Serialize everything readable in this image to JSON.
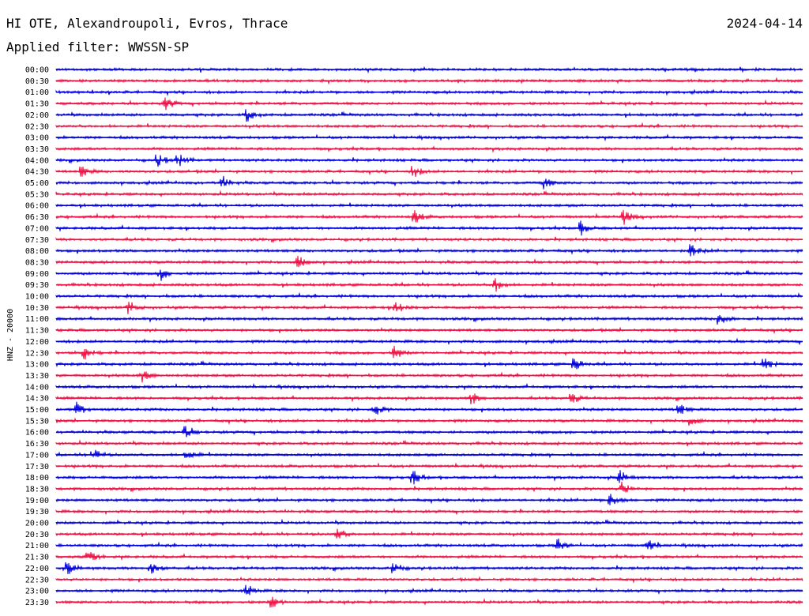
{
  "header": {
    "station": "HI OTE, Alexandroupoli, Evros, Thrace",
    "date": "2024-04-14",
    "filter": "Applied filter: WWSSN-SP"
  },
  "colors": {
    "blue": "#0000dd",
    "red": "#ee1144"
  },
  "chart_data": {
    "type": "line",
    "title": "HI OTE, Alexandroupoli, Evros, Thrace",
    "ylabel": "HNZ - 20000",
    "trace_colors": [
      "#0000dd",
      "#ee1144"
    ],
    "rows": [
      "00:00",
      "00:30",
      "01:00",
      "01:30",
      "02:00",
      "02:30",
      "03:00",
      "03:30",
      "04:00",
      "04:30",
      "05:00",
      "05:30",
      "06:00",
      "06:30",
      "07:00",
      "07:30",
      "08:00",
      "08:30",
      "09:00",
      "09:30",
      "10:00",
      "10:30",
      "11:00",
      "11:30",
      "12:00",
      "12:30",
      "13:00",
      "13:30",
      "14:00",
      "14:30",
      "15:00",
      "15:30",
      "16:00",
      "16:30",
      "17:00",
      "17:30",
      "18:00",
      "18:30",
      "19:00",
      "19:30",
      "20:00",
      "20:30",
      "21:00",
      "21:30",
      "22:00",
      "22:30",
      "23:00",
      "23:30"
    ]
  }
}
